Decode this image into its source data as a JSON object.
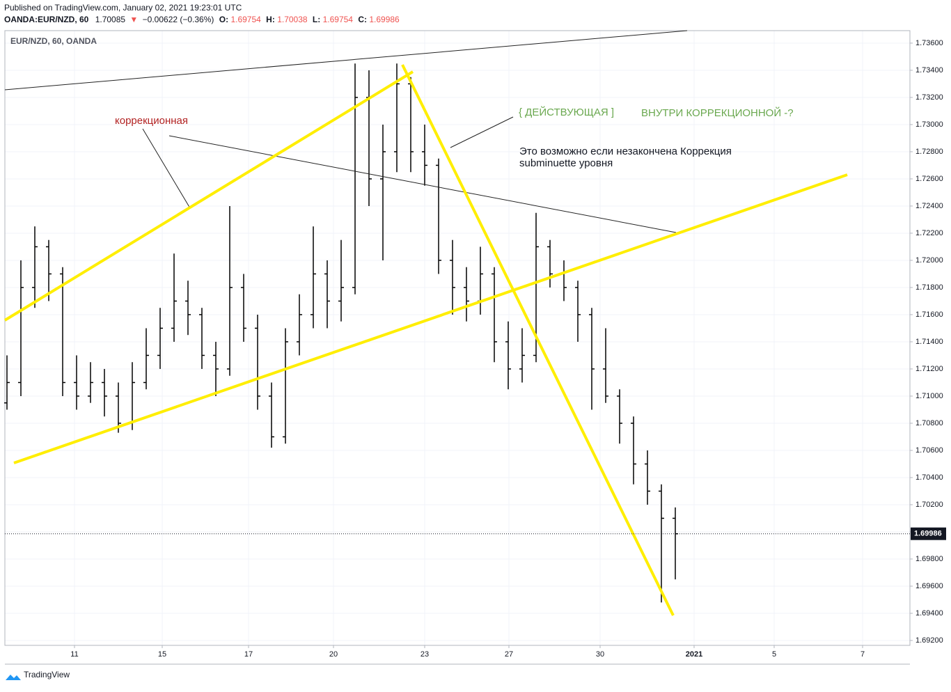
{
  "header": {
    "published": "Published on TradingView.com, January 02, 2021 19:23:01 UTC",
    "symbol": "OANDA:EUR/NZD, 60",
    "last": "1.70085",
    "arrow": "▼",
    "change": "−0.00622 (−0.36%)",
    "o_label": "O:",
    "o": "1.69754",
    "h_label": "H:",
    "h": "1.70038",
    "l_label": "L:",
    "l": "1.69754",
    "c_label": "C:",
    "c": "1.69986"
  },
  "footer": {
    "brand": "TradingView"
  },
  "chart_data": {
    "type": "ohlc",
    "legend": "EUR/NZD, 60, OANDA",
    "color": "#000000",
    "grid": true,
    "annotations": {
      "correction": "коррекционная",
      "acting": "{ ДЕЙСТВУЮЩАЯ ]",
      "inside": "ВНУТРИ КОРРЕКЦИОННОЙ  -?",
      "note1": "Это возможно если незакончена Коррекция",
      "note2": "subminuette уровня"
    },
    "open": [
      1.7095,
      1.711,
      1.718,
      1.721,
      1.719,
      1.711,
      1.71,
      1.711,
      1.71,
      1.708,
      1.711,
      1.713,
      1.715,
      1.717,
      1.716,
      1.713,
      1.712,
      1.718,
      1.715,
      1.71,
      1.707,
      1.714,
      1.716,
      1.719,
      1.717,
      1.718,
      1.732,
      1.726,
      1.728,
      1.733,
      1.728,
      1.727,
      1.72,
      1.718,
      1.717,
      1.719,
      1.714,
      1.712,
      1.713,
      1.721,
      1.719,
      1.718,
      1.716,
      1.712,
      1.71,
      1.708,
      1.705,
      1.703,
      1.701
    ],
    "high": [
      1.713,
      1.72,
      1.7225,
      1.7215,
      1.7195,
      1.713,
      1.7125,
      1.712,
      1.711,
      1.7125,
      1.715,
      1.7165,
      1.7205,
      1.7185,
      1.7165,
      1.714,
      1.724,
      1.719,
      1.716,
      1.711,
      1.715,
      1.7175,
      1.7225,
      1.72,
      1.7215,
      1.7345,
      1.734,
      1.73,
      1.7345,
      1.7335,
      1.73,
      1.7275,
      1.7215,
      1.7195,
      1.721,
      1.7195,
      1.7155,
      1.715,
      1.7235,
      1.7215,
      1.72,
      1.7185,
      1.7165,
      1.715,
      1.7105,
      1.7085,
      1.706,
      1.7035,
      1.7018
    ],
    "low": [
      1.709,
      1.71,
      1.7165,
      1.717,
      1.71,
      1.709,
      1.7095,
      1.7085,
      1.7073,
      1.7075,
      1.7105,
      1.712,
      1.714,
      1.7145,
      1.712,
      1.71,
      1.7115,
      1.714,
      1.709,
      1.7062,
      1.7065,
      1.713,
      1.715,
      1.715,
      1.7155,
      1.7175,
      1.724,
      1.72,
      1.7265,
      1.7265,
      1.7255,
      1.719,
      1.716,
      1.7155,
      1.716,
      1.7125,
      1.7105,
      1.711,
      1.7125,
      1.718,
      1.717,
      1.714,
      1.709,
      1.7095,
      1.7065,
      1.7035,
      1.702,
      1.6948,
      1.6965
    ],
    "close": [
      1.711,
      1.718,
      1.721,
      1.719,
      1.711,
      1.71,
      1.711,
      1.71,
      1.708,
      1.711,
      1.713,
      1.715,
      1.717,
      1.716,
      1.713,
      1.712,
      1.718,
      1.715,
      1.71,
      1.707,
      1.714,
      1.716,
      1.719,
      1.717,
      1.718,
      1.732,
      1.726,
      1.728,
      1.733,
      1.728,
      1.727,
      1.72,
      1.718,
      1.717,
      1.719,
      1.714,
      1.712,
      1.713,
      1.721,
      1.719,
      1.718,
      1.716,
      1.712,
      1.71,
      1.708,
      1.705,
      1.703,
      1.701,
      1.69986
    ],
    "xlim": [
      -0.15,
      64.85
    ],
    "xticks": [
      {
        "value": 4.85,
        "label": "11"
      },
      {
        "value": 11.15,
        "label": "15"
      },
      {
        "value": 17.35,
        "label": "17"
      },
      {
        "value": 23.45,
        "label": "20"
      },
      {
        "value": 30,
        "label": "23"
      },
      {
        "value": 36.05,
        "label": "27"
      },
      {
        "value": 42.6,
        "label": "30"
      },
      {
        "value": 49.35,
        "label": "2021"
      },
      {
        "value": 55.1,
        "label": "5"
      },
      {
        "value": 61.45,
        "label": "7"
      }
    ],
    "ylim": [
      1.69164,
      1.73692
    ],
    "yticks": [
      {
        "value": 1.692,
        "label": "1.69200"
      },
      {
        "value": 1.694,
        "label": "1.69400"
      },
      {
        "value": 1.696,
        "label": "1.69600"
      },
      {
        "value": 1.698,
        "label": "1.69800"
      },
      {
        "value": 1.7,
        "label": "1.70000"
      },
      {
        "value": 1.702,
        "label": "1.70200"
      },
      {
        "value": 1.704,
        "label": "1.70400"
      },
      {
        "value": 1.706,
        "label": "1.70600"
      },
      {
        "value": 1.708,
        "label": "1.70800"
      },
      {
        "value": 1.71,
        "label": "1.71000"
      },
      {
        "value": 1.712,
        "label": "1.71200"
      },
      {
        "value": 1.714,
        "label": "1.71400"
      },
      {
        "value": 1.716,
        "label": "1.71600"
      },
      {
        "value": 1.718,
        "label": "1.71800"
      },
      {
        "value": 1.72,
        "label": "1.72000"
      },
      {
        "value": 1.722,
        "label": "1.72200"
      },
      {
        "value": 1.724,
        "label": "1.72400"
      },
      {
        "value": 1.726,
        "label": "1.72600"
      },
      {
        "value": 1.728,
        "label": "1.72800"
      },
      {
        "value": 1.73,
        "label": "1.73000"
      },
      {
        "value": 1.732,
        "label": "1.73200"
      },
      {
        "value": 1.734,
        "label": "1.73400"
      },
      {
        "value": 1.736,
        "label": "1.73600"
      }
    ]
  }
}
